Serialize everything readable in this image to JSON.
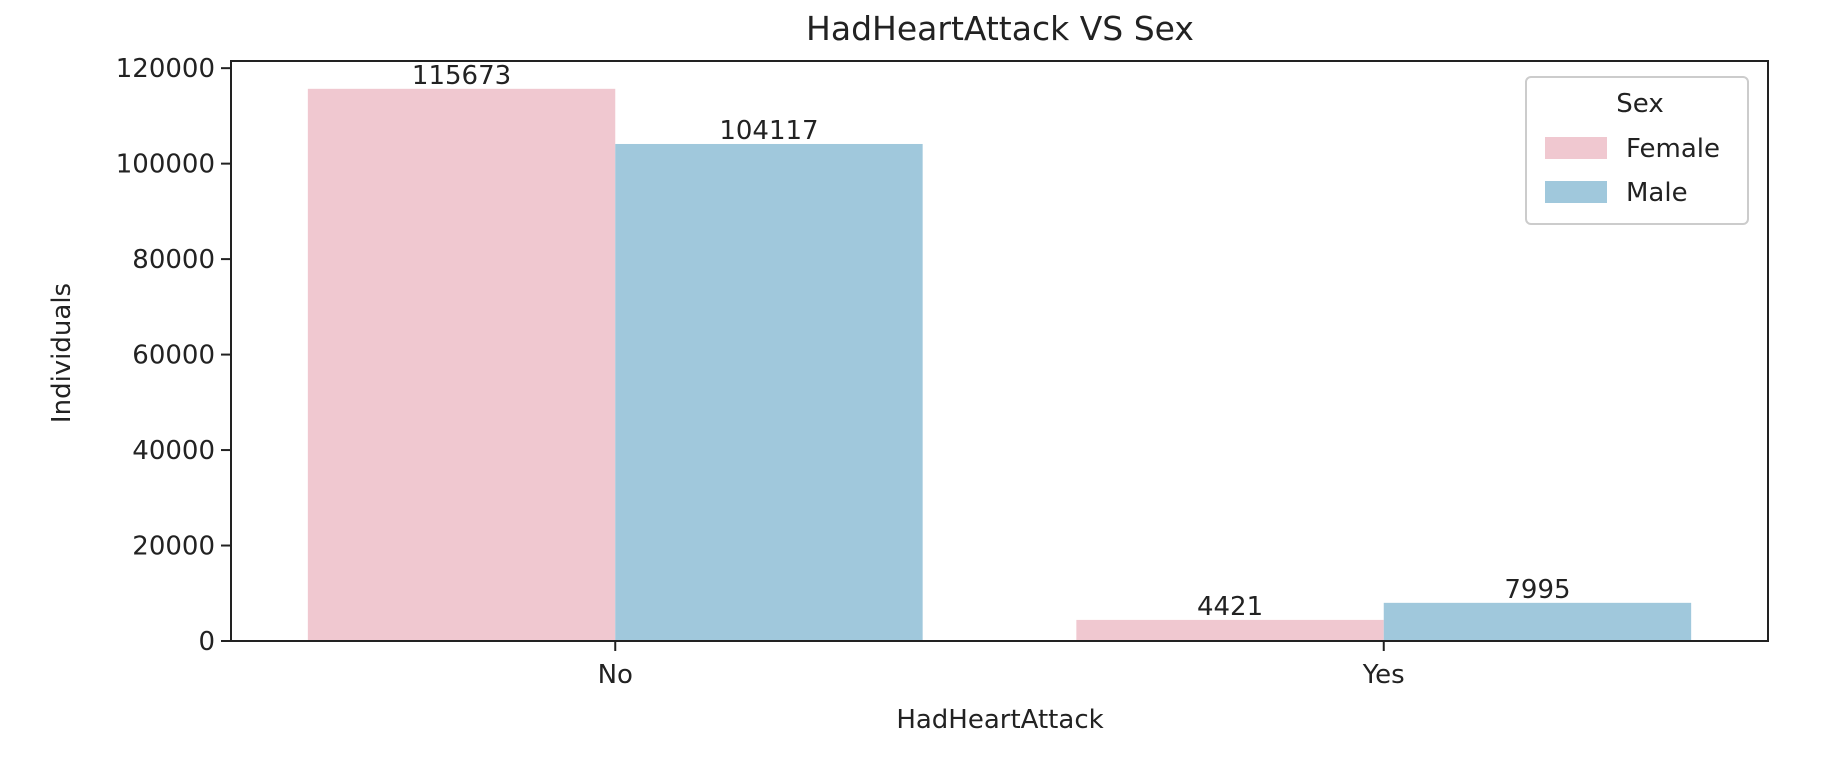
{
  "chart_data": {
    "type": "bar",
    "title": "HadHeartAttack VS Sex",
    "xlabel": "HadHeartAttack",
    "ylabel": "Individuals",
    "categories": [
      "No",
      "Yes"
    ],
    "series": [
      {
        "name": "Female",
        "color": "#f0c8d0",
        "values": [
          115673,
          4421
        ]
      },
      {
        "name": "Male",
        "color": "#a0c8dc",
        "values": [
          104117,
          7995
        ]
      }
    ],
    "ylim": [
      0,
      121500
    ],
    "yticks": [
      0,
      20000,
      40000,
      60000,
      80000,
      100000,
      120000
    ],
    "ytick_labels": [
      "0",
      "20000",
      "40000",
      "60000",
      "80000",
      "100000",
      "120000"
    ],
    "data_labels": [
      [
        "115673",
        "4421"
      ],
      [
        "104117",
        "7995"
      ]
    ],
    "grid": false,
    "legend": {
      "title": "Sex",
      "placement": "top-right"
    }
  }
}
